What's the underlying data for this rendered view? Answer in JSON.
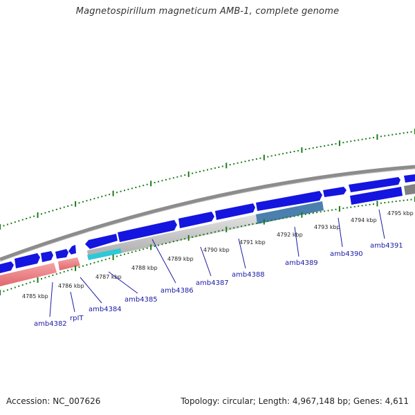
{
  "title": "Magnetospirillum magneticum AMB-1, complete genome",
  "footer": {
    "accession": "Accession: NC_007626",
    "topology": "Topology: circular; Length: 4,967,148 bp; Genes: 4,611"
  },
  "colors": {
    "forward_gene": "#1515e0",
    "rrna": "#ee7a7e",
    "trna": "#2ec8d8",
    "selected_region": "#4a7fae",
    "backbone": "#8c8c8c",
    "ticks": "#1a7a1a",
    "label_line": "#1a1aa6"
  },
  "tick_labels": [
    "4785 kbp",
    "4786 kbp",
    "4787 kbp",
    "4788 kbp",
    "4789 kbp",
    "4790 kbp",
    "4791 kbp",
    "4792 kbp",
    "4793 kbp",
    "4794 kbp",
    "4795 kbp"
  ],
  "gene_labels": [
    "amb4382",
    "rpIT",
    "amb4384",
    "amb4385",
    "amb4386",
    "amb4387",
    "amb4388",
    "amb4389",
    "amb4390",
    "amb4391"
  ]
}
